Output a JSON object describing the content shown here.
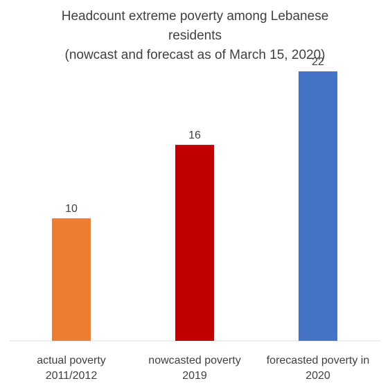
{
  "chart_data": {
    "type": "bar",
    "title_lines": [
      "Headcount extreme poverty among Lebanese",
      "residents",
      "(nowcast and forecast as of March 15, 2020)"
    ],
    "categories": [
      [
        "actual poverty",
        "2011/2012"
      ],
      [
        "nowcasted poverty",
        "2019"
      ],
      [
        "forecasted poverty in",
        "2020"
      ]
    ],
    "values": [
      10,
      16,
      22
    ],
    "data_labels": [
      "10",
      "16",
      "22"
    ],
    "colors": [
      "#ED7D31",
      "#C00000",
      "#4472C4"
    ],
    "xlabel": "",
    "ylabel": "",
    "ylim": [
      0,
      25
    ],
    "grid": false,
    "legend": "none"
  }
}
